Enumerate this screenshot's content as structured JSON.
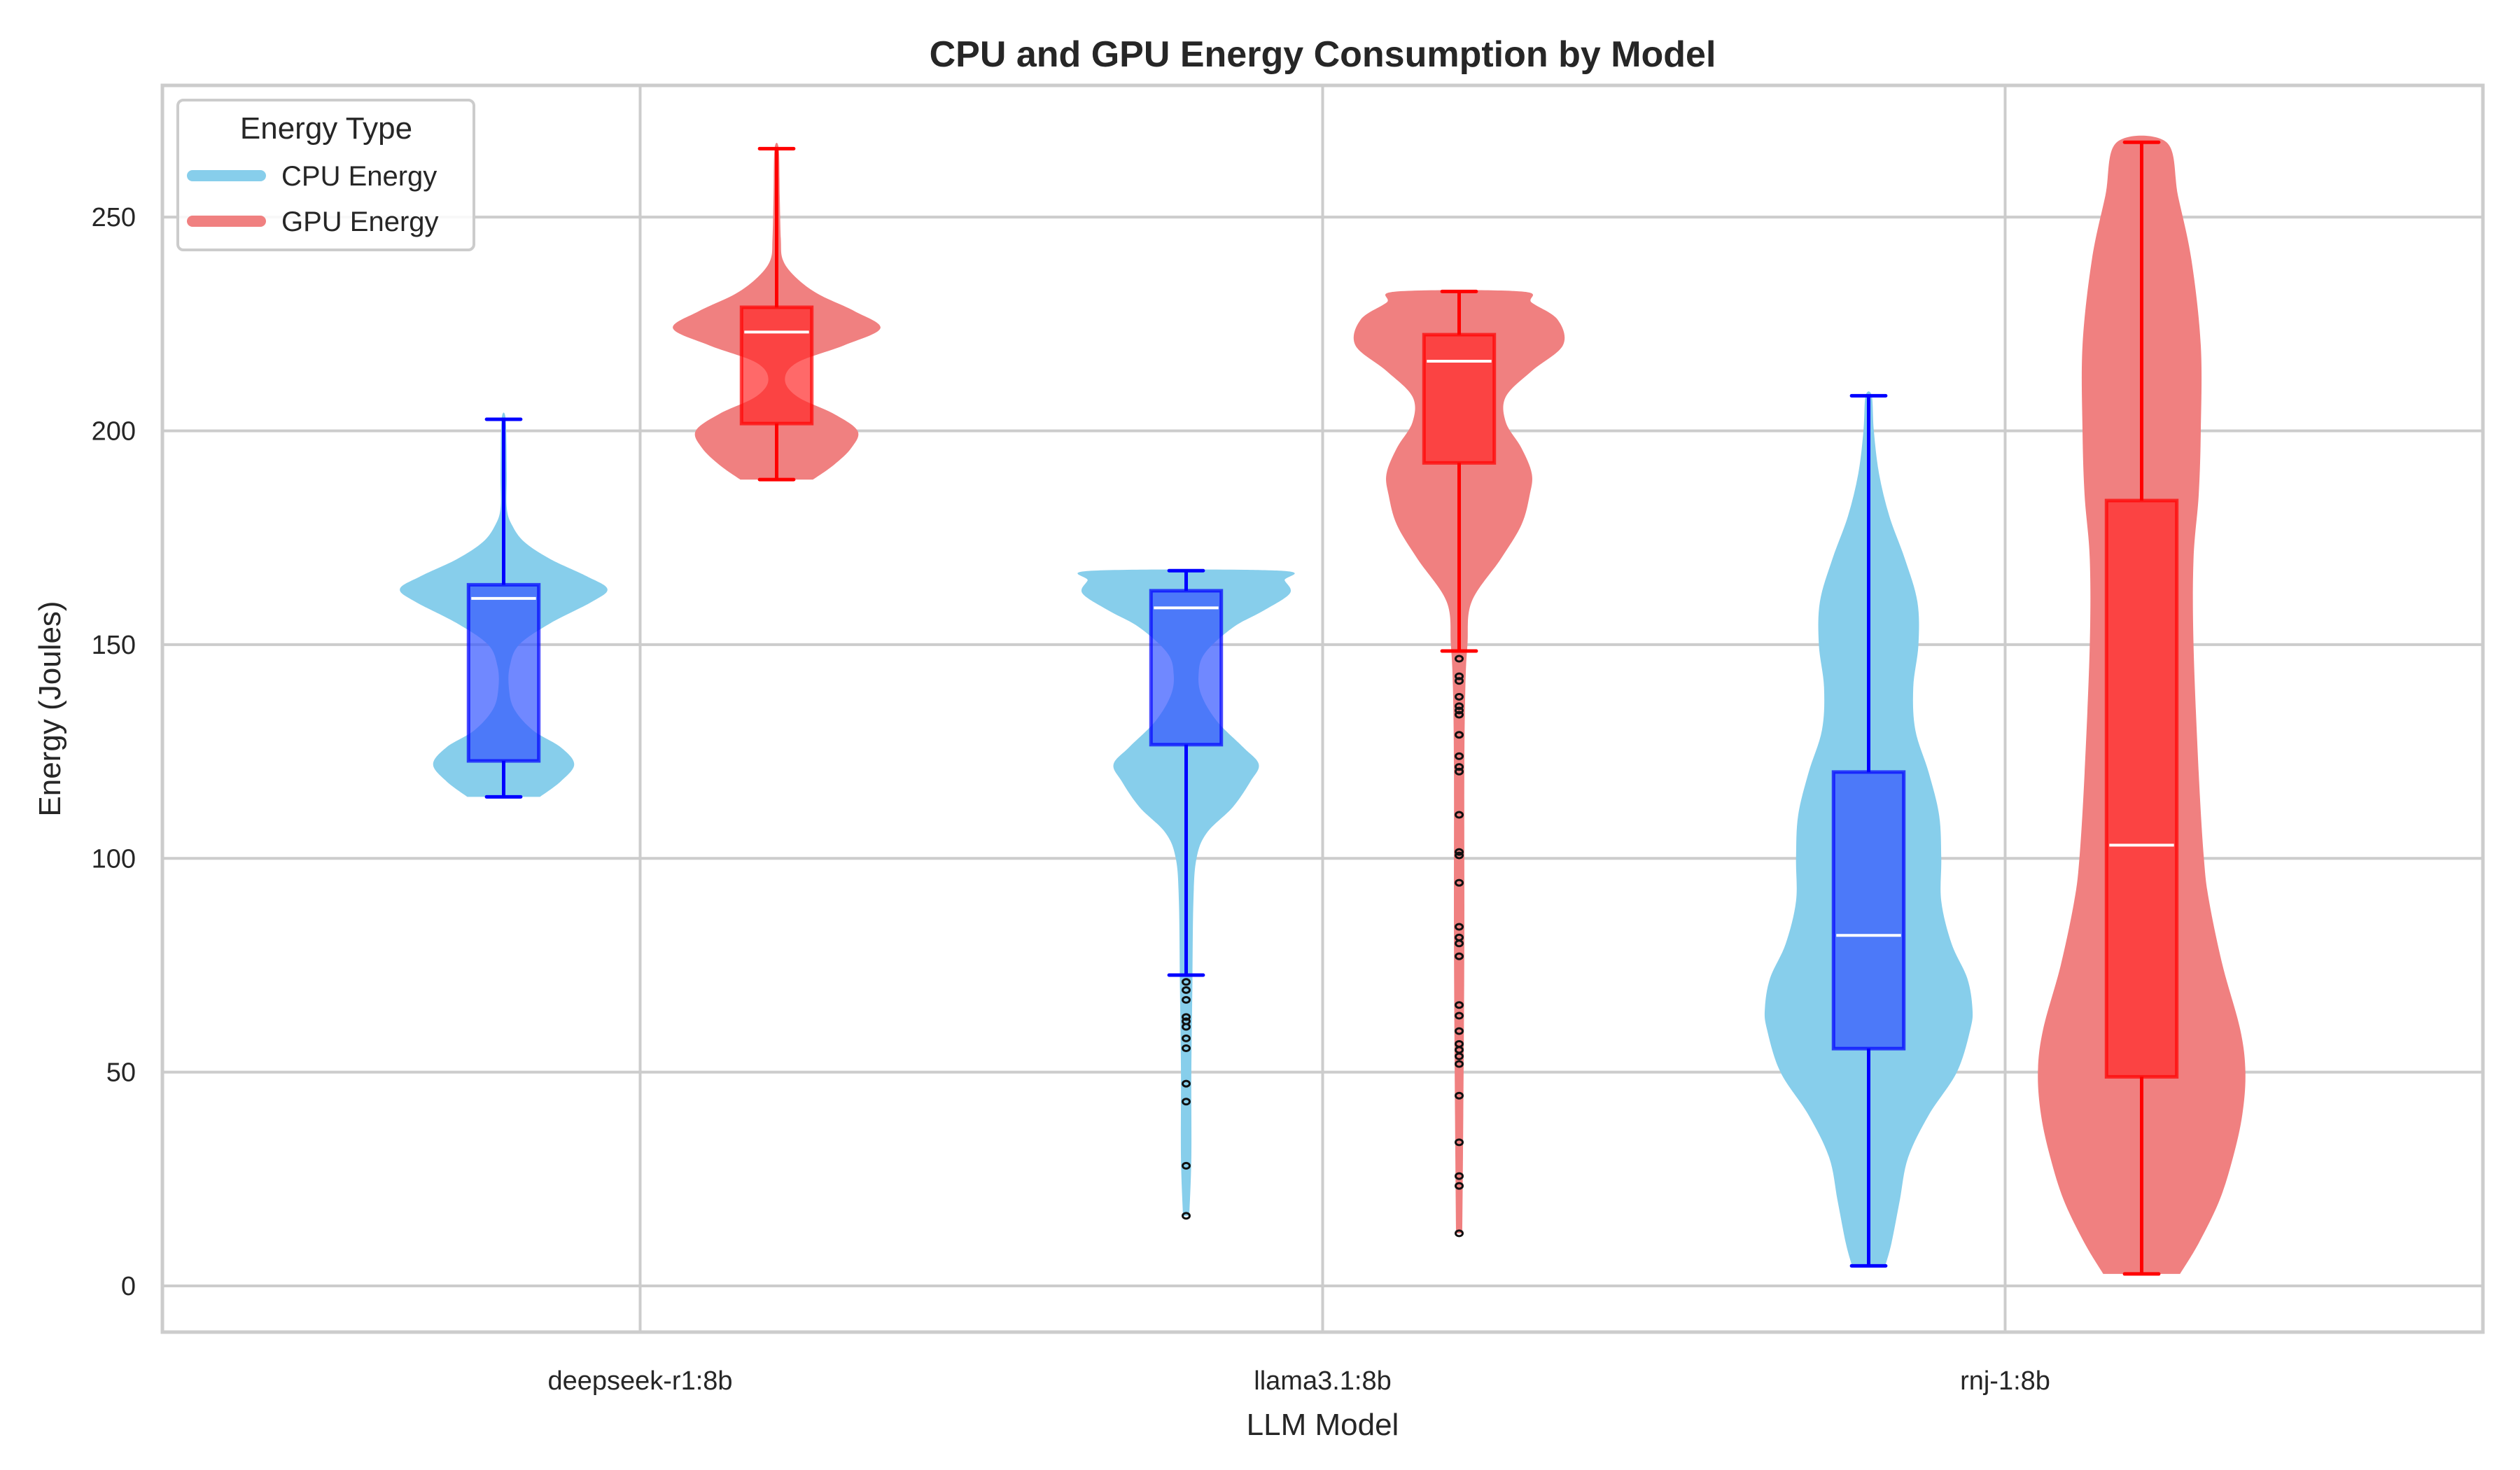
{
  "chart_data": {
    "type": "violin",
    "title": "CPU and GPU Energy Consumption by Model",
    "xlabel": "LLM Model",
    "ylabel": "Energy (Joules)",
    "categories": [
      "deepseek-r1:8b",
      "llama3.1:8b",
      "rnj-1:8b"
    ],
    "ylim": [
      -10.8,
      280.8
    ],
    "yticks": [
      0,
      50,
      100,
      150,
      200,
      250
    ],
    "grid": true,
    "legend": {
      "title": "Energy Type",
      "placement": "top-left",
      "entries": [
        {
          "label": "CPU Energy",
          "color": "#87CEEB"
        },
        {
          "label": "GPU Energy",
          "color": "#F08080"
        }
      ]
    },
    "series": [
      {
        "name": "CPU Energy",
        "violin_color": "#87CEEB",
        "box_color": "#0000FF",
        "box_fill": "#3355FF",
        "stats": [
          {
            "category": "deepseek-r1:8b",
            "whisker_low": 114.4,
            "q1": 122.8,
            "median": 160.8,
            "q3": 164.0,
            "whisker_high": 202.7,
            "outliers": []
          },
          {
            "category": "llama3.1:8b",
            "whisker_low": 72.7,
            "q1": 126.6,
            "median": 158.6,
            "q3": 162.6,
            "whisker_high": 167.3,
            "outliers": [
              71.1,
              69.2,
              66.9,
              62.9,
              61.9,
              60.6,
              57.9,
              55.6,
              47.3,
              43.1,
              28.1,
              16.4
            ]
          },
          {
            "category": "rnj-1:8b",
            "whisker_low": 4.7,
            "q1": 55.5,
            "median": 82.0,
            "q3": 120.2,
            "whisker_high": 208.2,
            "outliers": []
          }
        ],
        "density": [
          [
            [
              114.4,
              0.35
            ],
            [
              118,
              0.55
            ],
            [
              122,
              0.68
            ],
            [
              126,
              0.55
            ],
            [
              130,
              0.28
            ],
            [
              135,
              0.1
            ],
            [
              140,
              0.05
            ],
            [
              145,
              0.06
            ],
            [
              150,
              0.15
            ],
            [
              155,
              0.45
            ],
            [
              160,
              0.85
            ],
            [
              163,
              1.0
            ],
            [
              166,
              0.8
            ],
            [
              170,
              0.45
            ],
            [
              174,
              0.2
            ],
            [
              178,
              0.08
            ],
            [
              182,
              0.03
            ],
            [
              190,
              0.03
            ],
            [
              202.7,
              0.02
            ]
          ],
          [
            [
              16.4,
              0.03
            ],
            [
              30,
              0.05
            ],
            [
              50,
              0.05
            ],
            [
              70,
              0.06
            ],
            [
              90,
              0.07
            ],
            [
              100,
              0.1
            ],
            [
              106,
              0.2
            ],
            [
              112,
              0.45
            ],
            [
              118,
              0.62
            ],
            [
              122,
              0.7
            ],
            [
              126,
              0.55
            ],
            [
              132,
              0.3
            ],
            [
              138,
              0.15
            ],
            [
              143,
              0.12
            ],
            [
              148,
              0.18
            ],
            [
              154,
              0.45
            ],
            [
              158,
              0.75
            ],
            [
              162,
              1.0
            ],
            [
              165,
              0.95
            ],
            [
              167.3,
              0.9
            ]
          ],
          [
            [
              4.7,
              0.16
            ],
            [
              10,
              0.22
            ],
            [
              20,
              0.3
            ],
            [
              30,
              0.38
            ],
            [
              40,
              0.58
            ],
            [
              50,
              0.85
            ],
            [
              60,
              0.98
            ],
            [
              65,
              1.0
            ],
            [
              72,
              0.95
            ],
            [
              80,
              0.8
            ],
            [
              90,
              0.7
            ],
            [
              100,
              0.7
            ],
            [
              110,
              0.68
            ],
            [
              120,
              0.58
            ],
            [
              130,
              0.45
            ],
            [
              140,
              0.43
            ],
            [
              150,
              0.48
            ],
            [
              160,
              0.47
            ],
            [
              170,
              0.35
            ],
            [
              180,
              0.2
            ],
            [
              190,
              0.1
            ],
            [
              200,
              0.05
            ],
            [
              208.2,
              0.03
            ]
          ]
        ]
      },
      {
        "name": "GPU Energy",
        "violin_color": "#F08080",
        "box_color": "#FF0000",
        "box_fill": "#FF2A2A",
        "stats": [
          {
            "category": "deepseek-r1:8b",
            "whisker_low": 188.6,
            "q1": 201.7,
            "median": 223.1,
            "q3": 228.9,
            "whisker_high": 266.0,
            "outliers": []
          },
          {
            "category": "llama3.1:8b",
            "whisker_low": 148.5,
            "q1": 192.5,
            "median": 216.3,
            "q3": 222.5,
            "whisker_high": 232.6,
            "outliers": [
              146.7,
              142.6,
              141.5,
              137.8,
              135.6,
              134.6,
              133.6,
              128.9,
              123.9,
              121.4,
              120.3,
              110.2,
              101.5,
              100.7,
              94.3,
              84.0,
              81.5,
              80.1,
              77.1,
              65.7,
              63.2,
              59.6,
              56.6,
              55.2,
              53.7,
              51.9,
              44.5,
              33.6,
              25.7,
              23.4,
              12.3
            ]
          },
          {
            "category": "rnj-1:8b",
            "whisker_low": 2.8,
            "q1": 48.9,
            "median": 103.1,
            "q3": 183.7,
            "whisker_high": 267.5,
            "outliers": []
          }
        ],
        "density": [
          [
            [
              188.6,
              0.35
            ],
            [
              192,
              0.55
            ],
            [
              196,
              0.72
            ],
            [
              200,
              0.78
            ],
            [
              204,
              0.55
            ],
            [
              208,
              0.2
            ],
            [
              212,
              0.08
            ],
            [
              216,
              0.2
            ],
            [
              220,
              0.65
            ],
            [
              224,
              1.0
            ],
            [
              228,
              0.75
            ],
            [
              232,
              0.4
            ],
            [
              236,
              0.18
            ],
            [
              240,
              0.06
            ],
            [
              245,
              0.04
            ],
            [
              255,
              0.03
            ],
            [
              266,
              0.02
            ]
          ],
          [
            [
              12.3,
              0.03
            ],
            [
              40,
              0.04
            ],
            [
              80,
              0.05
            ],
            [
              120,
              0.05
            ],
            [
              140,
              0.06
            ],
            [
              150,
              0.08
            ],
            [
              160,
              0.12
            ],
            [
              170,
              0.4
            ],
            [
              178,
              0.6
            ],
            [
              185,
              0.68
            ],
            [
              190,
              0.7
            ],
            [
              196,
              0.6
            ],
            [
              202,
              0.45
            ],
            [
              208,
              0.45
            ],
            [
              214,
              0.7
            ],
            [
              220,
              1.0
            ],
            [
              226,
              0.95
            ],
            [
              230,
              0.7
            ],
            [
              232.6,
              0.6
            ]
          ],
          [
            [
              2.8,
              0.37
            ],
            [
              10,
              0.55
            ],
            [
              20,
              0.75
            ],
            [
              30,
              0.88
            ],
            [
              40,
              0.97
            ],
            [
              50,
              1.0
            ],
            [
              60,
              0.95
            ],
            [
              75,
              0.78
            ],
            [
              90,
              0.65
            ],
            [
              100,
              0.6
            ],
            [
              120,
              0.55
            ],
            [
              150,
              0.5
            ],
            [
              170,
              0.5
            ],
            [
              185,
              0.55
            ],
            [
              200,
              0.57
            ],
            [
              220,
              0.57
            ],
            [
              240,
              0.48
            ],
            [
              255,
              0.35
            ],
            [
              267.5,
              0.24
            ]
          ]
        ]
      }
    ]
  }
}
